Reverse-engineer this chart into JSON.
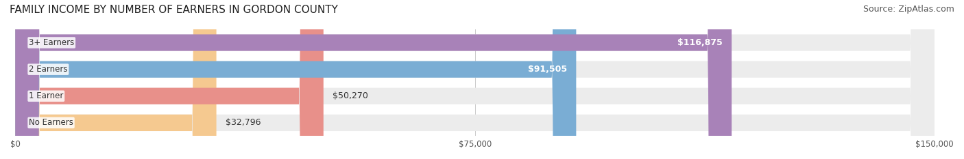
{
  "title": "FAMILY INCOME BY NUMBER OF EARNERS IN GORDON COUNTY",
  "source": "Source: ZipAtlas.com",
  "categories": [
    "No Earners",
    "1 Earner",
    "2 Earners",
    "3+ Earners"
  ],
  "values": [
    32796,
    50270,
    91505,
    116875
  ],
  "bar_colors": [
    "#f5c990",
    "#e8908a",
    "#7aadd4",
    "#a882b8"
  ],
  "label_colors": [
    "#333333",
    "#333333",
    "#ffffff",
    "#ffffff"
  ],
  "bar_bg_color": "#ececec",
  "x_max": 150000,
  "x_ticks": [
    0,
    75000,
    150000
  ],
  "x_tick_labels": [
    "$0",
    "$75,000",
    "$150,000"
  ],
  "title_fontsize": 11,
  "source_fontsize": 9,
  "label_fontsize": 9,
  "category_fontsize": 8.5,
  "bar_height": 0.62,
  "fig_bg_color": "#ffffff"
}
